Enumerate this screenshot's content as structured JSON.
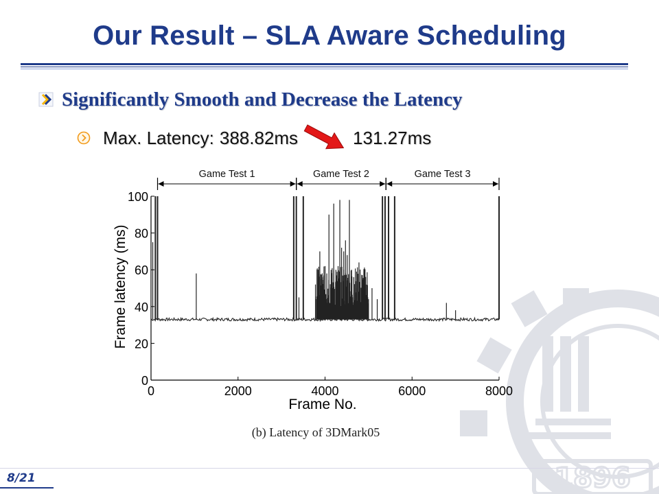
{
  "slide": {
    "title": "Our Result – SLA Aware Scheduling",
    "bullet1": "Significantly Smooth and Decrease the Latency",
    "bullet2": {
      "label": "Max. Latency:",
      "before": "388.82ms",
      "after": "131.27ms"
    },
    "page_number": "8/21",
    "watermark_text": "1896"
  },
  "colors": {
    "title": "#1f3b8a",
    "arrow": "#e31818",
    "trace": "#222222",
    "watermark": "#dfe1e7"
  },
  "icons": {
    "bullet1": "chevron-bullet-icon",
    "bullet2": "circle-chevron-icon",
    "arrow": "red-arrow-icon"
  },
  "chart_data": {
    "type": "line",
    "caption": "(b) Latency of 3DMark05",
    "xlabel": "Frame No.",
    "ylabel": "Frame latency (ms)",
    "xlim": [
      0,
      8000
    ],
    "ylim": [
      0,
      100
    ],
    "xticks": [
      0,
      2000,
      4000,
      6000,
      8000
    ],
    "yticks": [
      0,
      20,
      40,
      60,
      80,
      100
    ],
    "baseline": 33,
    "annotations": [
      {
        "label": "Game Test 1",
        "x_start": 150,
        "x_end": 3340
      },
      {
        "label": "Game Test 2",
        "x_start": 3340,
        "x_end": 5400
      },
      {
        "label": "Game Test 3",
        "x_start": 5400,
        "x_end": 8000
      }
    ],
    "spikes": [
      [
        40,
        75
      ],
      [
        100,
        100
      ],
      [
        150,
        100
      ],
      [
        1040,
        58
      ],
      [
        3280,
        100
      ],
      [
        3340,
        100
      ],
      [
        3400,
        45
      ],
      [
        3500,
        100
      ],
      [
        3780,
        52
      ],
      [
        3840,
        60
      ],
      [
        3880,
        70
      ],
      [
        3920,
        55
      ],
      [
        3960,
        52
      ],
      [
        4000,
        62
      ],
      [
        4040,
        58
      ],
      [
        4090,
        90
      ],
      [
        4140,
        60
      ],
      [
        4200,
        96
      ],
      [
        4250,
        60
      ],
      [
        4300,
        62
      ],
      [
        4340,
        98
      ],
      [
        4380,
        72
      ],
      [
        4430,
        70
      ],
      [
        4470,
        76
      ],
      [
        4510,
        68
      ],
      [
        4560,
        98
      ],
      [
        4610,
        60
      ],
      [
        4660,
        56
      ],
      [
        4720,
        50
      ],
      [
        4780,
        64
      ],
      [
        4840,
        48
      ],
      [
        4900,
        52
      ],
      [
        5000,
        44
      ],
      [
        5080,
        50
      ],
      [
        5200,
        44
      ],
      [
        5320,
        100
      ],
      [
        5380,
        100
      ],
      [
        5460,
        100
      ],
      [
        5600,
        100
      ],
      [
        6790,
        42
      ],
      [
        7000,
        38
      ],
      [
        8000,
        100
      ]
    ],
    "dense_regions": [
      {
        "x_start": 3800,
        "x_end": 5000,
        "y_low": 38,
        "y_high": 62
      }
    ]
  }
}
